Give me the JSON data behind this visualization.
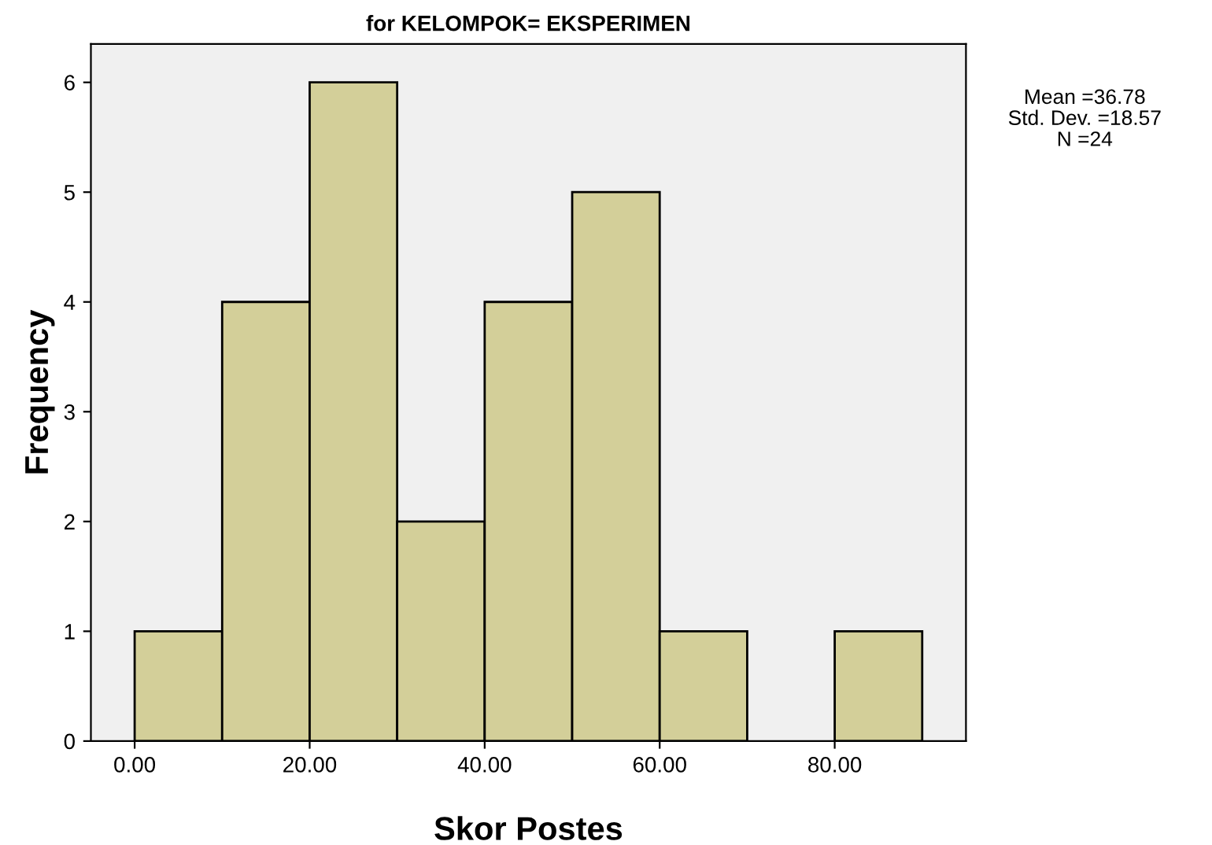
{
  "chart_data": {
    "type": "histogram",
    "title": "for KELOMPOK= EKSPERIMEN",
    "xlabel": "Skor Postes",
    "ylabel": "Frequency",
    "bins": [
      0,
      10,
      20,
      30,
      40,
      50,
      60,
      70,
      80,
      90
    ],
    "values": [
      1,
      4,
      6,
      2,
      4,
      5,
      1,
      0,
      1
    ],
    "color": "#d3cf99",
    "xlim": [
      -5,
      95
    ],
    "ylim": [
      0,
      6.35
    ],
    "xticks": [
      {
        "value": 0,
        "label": "0.00"
      },
      {
        "value": 20,
        "label": "20.00"
      },
      {
        "value": 40,
        "label": "40.00"
      },
      {
        "value": 60,
        "label": "60.00"
      },
      {
        "value": 80,
        "label": "80.00"
      }
    ],
    "yticks": [
      0,
      1,
      2,
      3,
      4,
      5,
      6
    ],
    "grid": false,
    "annotations": [
      "Mean =36.78",
      "Std. Dev. =18.57",
      "N =24"
    ]
  }
}
